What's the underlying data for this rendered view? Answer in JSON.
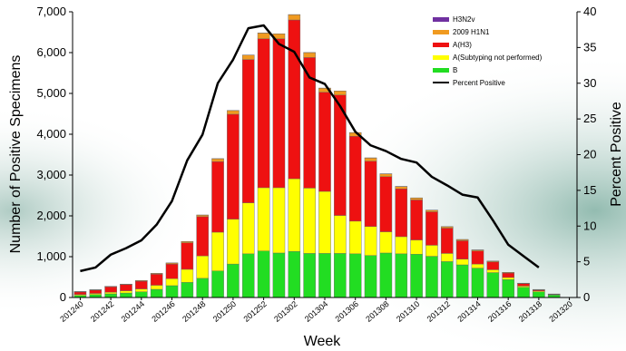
{
  "chart_data": {
    "type": "bar",
    "stacked": true,
    "xlabel": "Week",
    "ylabel": "Number of Positive Specimens",
    "y2label": "Percent Positive",
    "ylim": [
      0,
      7000
    ],
    "y2lim": [
      0,
      40
    ],
    "yticks": [
      "0",
      "1,000",
      "2,000",
      "3,000",
      "4,000",
      "5,000",
      "6,000",
      "7,000"
    ],
    "y2ticks": [
      "0",
      "5",
      "10",
      "15",
      "20",
      "25",
      "30",
      "35",
      "40"
    ],
    "x_tick_labels": [
      "201240",
      "201242",
      "201244",
      "201246",
      "201248",
      "201250",
      "201252",
      "201302",
      "201304",
      "201306",
      "201308",
      "201310",
      "201312",
      "201314",
      "201316",
      "201318",
      "201320"
    ],
    "x": [
      "201240",
      "201241",
      "201242",
      "201243",
      "201244",
      "201245",
      "201246",
      "201247",
      "201248",
      "201249",
      "201250",
      "201251",
      "201252",
      "201301",
      "201302",
      "201303",
      "201304",
      "201305",
      "201306",
      "201307",
      "201308",
      "201309",
      "201310",
      "201311",
      "201312",
      "201313",
      "201314",
      "201315",
      "201316",
      "201317",
      "201318",
      "201319",
      "201320"
    ],
    "legend": [
      "H3N2v",
      "2009 H1N1",
      "A(H3)",
      "A(Subtyping not performed)",
      "B",
      "Percent Positive"
    ],
    "series": [
      {
        "name": "B",
        "color": "#22dd22",
        "values": [
          50,
          70,
          90,
          110,
          140,
          200,
          290,
          370,
          470,
          650,
          820,
          1070,
          1140,
          1090,
          1130,
          1080,
          1080,
          1080,
          1070,
          1030,
          1090,
          1070,
          1060,
          1010,
          880,
          800,
          720,
          610,
          440,
          250,
          140,
          60,
          0
        ]
      },
      {
        "name": "A(Subtyping not performed)",
        "color": "#ffff00",
        "values": [
          25,
          30,
          40,
          55,
          70,
          100,
          170,
          320,
          550,
          950,
          1100,
          1250,
          1550,
          1600,
          1780,
          1600,
          1520,
          930,
          800,
          710,
          520,
          420,
          350,
          270,
          200,
          140,
          100,
          70,
          50,
          30,
          20,
          10,
          0
        ]
      },
      {
        "name": "A(H3)",
        "color": "#ee1111",
        "values": [
          60,
          80,
          130,
          150,
          190,
          270,
          360,
          650,
          960,
          1730,
          2570,
          3510,
          3650,
          3650,
          3890,
          3200,
          2430,
          2950,
          2080,
          1600,
          1350,
          1170,
          980,
          820,
          620,
          450,
          320,
          190,
          110,
          60,
          25,
          10,
          0
        ]
      },
      {
        "name": "2009 H1N1",
        "color": "#f09a20",
        "values": [
          10,
          10,
          12,
          12,
          15,
          20,
          25,
          30,
          40,
          70,
          90,
          110,
          140,
          120,
          130,
          120,
          100,
          100,
          90,
          80,
          70,
          60,
          50,
          40,
          35,
          30,
          25,
          20,
          15,
          10,
          10,
          5,
          0
        ]
      },
      {
        "name": "H3N2v",
        "color": "#7030a0",
        "values": [
          2,
          2,
          2,
          2,
          2,
          2,
          2,
          2,
          2,
          2,
          2,
          2,
          2,
          2,
          2,
          2,
          2,
          2,
          2,
          2,
          2,
          2,
          2,
          2,
          2,
          2,
          2,
          2,
          2,
          2,
          2,
          2,
          0
        ]
      }
    ],
    "line": {
      "name": "Percent Positive",
      "color": "#000000",
      "axis": "right",
      "values": [
        3.7,
        4.2,
        6.0,
        6.9,
        8.0,
        10.2,
        13.5,
        19.2,
        22.8,
        30.0,
        33.3,
        37.7,
        38.1,
        35.5,
        34.4,
        30.8,
        29.9,
        26.8,
        23.2,
        21.3,
        20.5,
        19.4,
        18.9,
        16.9,
        15.7,
        14.4,
        14.0,
        10.8,
        7.4,
        5.8,
        4.2,
        null,
        null
      ]
    }
  }
}
